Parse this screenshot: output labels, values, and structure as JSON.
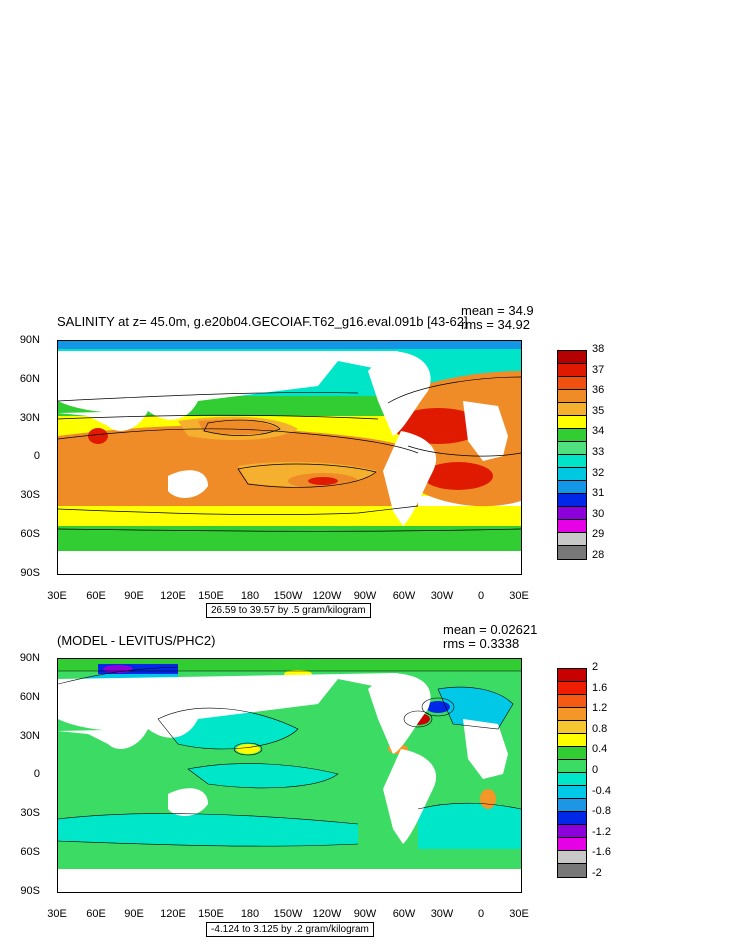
{
  "top": {
    "title": "SALINITY at z=  45.0m, g.e20b04.GECOIAF.T62_g16.eval.091b [43-62]",
    "mean_label": "mean = 34.9",
    "rms_label": "rms = 34.92",
    "range_label": "26.59 to 39.57 by .5 gram/kilogram",
    "colorbar": {
      "labels": [
        "38",
        "37",
        "36",
        "35",
        "34",
        "33",
        "32",
        "31",
        "30",
        "29",
        "28"
      ],
      "colors": [
        "#b40000",
        "#e01a00",
        "#f05010",
        "#f08c28",
        "#f5b030",
        "#ffff00",
        "#32cd32",
        "#50e080",
        "#00e5c8",
        "#00c8e0",
        "#1496e6",
        "#0028e6",
        "#8c00dc",
        "#e600e6",
        "#c8c8c8",
        "#787878"
      ]
    }
  },
  "bottom": {
    "title": "(MODEL - LEVITUS/PHC2)",
    "mean_label": "mean = 0.02621",
    "rms_label": "rms = 0.3338",
    "range_label": "-4.124 to 3.125 by .2 gram/kilogram",
    "colorbar": {
      "labels": [
        "2",
        "1.6",
        "1.2",
        "0.8",
        "0.4",
        "0",
        "-0.4",
        "-0.8",
        "-1.2",
        "-1.6",
        "-2"
      ],
      "colors": [
        "#c80000",
        "#f01e00",
        "#f55a14",
        "#f59628",
        "#f5c832",
        "#ffff00",
        "#32cd32",
        "#3cdc64",
        "#00e6c8",
        "#00c8e6",
        "#1e96e6",
        "#0028e6",
        "#8c00dc",
        "#e600e6",
        "#c8c8c8",
        "#787878"
      ]
    }
  },
  "axes": {
    "ylabels": [
      "90N",
      "60N",
      "30N",
      "0",
      "30S",
      "60S",
      "90S"
    ],
    "xlabels": [
      "30E",
      "60E",
      "90E",
      "120E",
      "150E",
      "180",
      "150W",
      "120W",
      "90W",
      "60W",
      "30W",
      "0",
      "30E"
    ]
  }
}
